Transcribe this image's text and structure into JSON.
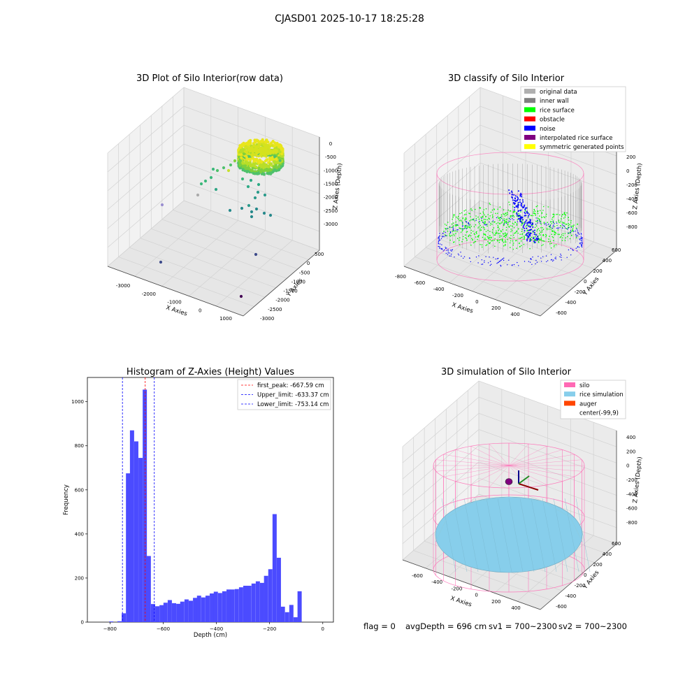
{
  "figure": {
    "suptitle": "CJASD01 2025-10-17 18:25:28",
    "status_line": {
      "flag": "flag = 0",
      "avg": "avgDepth = 696 cm",
      "sv1": "sv1 = 700~2300",
      "sv2": "sv2 = 700~2300"
    }
  },
  "colors": {
    "original": "#b0b0b0",
    "inner_wall": "#808080",
    "rice_surface": "#00ff00",
    "obstacle": "#ff0000",
    "noise": "#0000ff",
    "interpolated": "#800080",
    "symmetric": "#ffff00",
    "silo": "#ff69b4",
    "rice_sim": "#87ceeb",
    "auger": "#ff4500",
    "hist_bar": "#4b4bff",
    "peak_line": "#ff0000",
    "limit_line": "#0000ff"
  },
  "chart_data": [
    {
      "type": "scatter",
      "projection": "3d",
      "title": "3D Plot of Silo Interior(row data)",
      "xlabel": "X Axies",
      "ylabel": "Y Axies",
      "zlabel": "Z Axies (Depth)",
      "x_ticks": [
        "-3000",
        "-2000",
        "-1000",
        "0",
        "1000"
      ],
      "y_ticks": [
        "500",
        "0",
        "-500",
        "-1000",
        "-1500",
        "-2000",
        "-2500",
        "-3000"
      ],
      "z_ticks": [
        "0",
        "-500",
        "-1000",
        "-1500",
        "-2000",
        "-2500",
        "-3000"
      ],
      "xlim": [
        -3600,
        1300
      ],
      "ylim": [
        -3100,
        800
      ],
      "zlim": [
        -3300,
        100
      ]
    },
    {
      "type": "scatter",
      "projection": "3d",
      "title": "3D classify of Silo Interior",
      "xlabel": "X Axies",
      "ylabel": "Y Axies",
      "zlabel": "Z Axies (Depth)",
      "x_ticks": [
        "-800",
        "-600",
        "-400",
        "-200",
        "0",
        "200",
        "400"
      ],
      "y_ticks": [
        "600",
        "400",
        "200",
        "0",
        "-200",
        "-400",
        "-600"
      ],
      "z_ticks": [
        "200",
        "0",
        "-200",
        "-400",
        "-600",
        "-800"
      ],
      "legend": [
        "original data",
        "inner wall",
        "rice surface",
        "obstacle",
        "noise",
        "interpolated rice surface",
        "symmetric generated points"
      ],
      "legend_loc": "upper right"
    },
    {
      "type": "bar",
      "title": "Histogram of Z-Axies (Height) Values",
      "xlabel": "Depth (cm)",
      "ylabel": "Frequency",
      "xlim": [
        -885,
        40
      ],
      "ylim": [
        0,
        1110
      ],
      "x_ticks": [
        -800,
        -600,
        -400,
        -200,
        0
      ],
      "y_ticks": [
        0,
        200,
        400,
        600,
        800,
        1000
      ],
      "bin_width": 15.75,
      "bins": [
        {
          "x": -803,
          "v": 3
        },
        {
          "x": -788,
          "v": 0
        },
        {
          "x": -772,
          "v": 4
        },
        {
          "x": -756,
          "v": 40
        },
        {
          "x": -740,
          "v": 675
        },
        {
          "x": -725,
          "v": 870
        },
        {
          "x": -709,
          "v": 820
        },
        {
          "x": -693,
          "v": 745
        },
        {
          "x": -677,
          "v": 1055
        },
        {
          "x": -662,
          "v": 300
        },
        {
          "x": -646,
          "v": 82
        },
        {
          "x": -630,
          "v": 72
        },
        {
          "x": -614,
          "v": 77
        },
        {
          "x": -599,
          "v": 88
        },
        {
          "x": -583,
          "v": 100
        },
        {
          "x": -567,
          "v": 86
        },
        {
          "x": -551,
          "v": 83
        },
        {
          "x": -536,
          "v": 93
        },
        {
          "x": -520,
          "v": 103
        },
        {
          "x": -504,
          "v": 97
        },
        {
          "x": -488,
          "v": 110
        },
        {
          "x": -473,
          "v": 120
        },
        {
          "x": -457,
          "v": 112
        },
        {
          "x": -441,
          "v": 120
        },
        {
          "x": -425,
          "v": 130
        },
        {
          "x": -410,
          "v": 138
        },
        {
          "x": -394,
          "v": 132
        },
        {
          "x": -378,
          "v": 140
        },
        {
          "x": -362,
          "v": 148
        },
        {
          "x": -347,
          "v": 148
        },
        {
          "x": -331,
          "v": 150
        },
        {
          "x": -315,
          "v": 158
        },
        {
          "x": -299,
          "v": 165
        },
        {
          "x": -284,
          "v": 165
        },
        {
          "x": -268,
          "v": 175
        },
        {
          "x": -252,
          "v": 185
        },
        {
          "x": -236,
          "v": 178
        },
        {
          "x": -221,
          "v": 210
        },
        {
          "x": -205,
          "v": 240
        },
        {
          "x": -189,
          "v": 490
        },
        {
          "x": -173,
          "v": 292
        },
        {
          "x": -158,
          "v": 70
        },
        {
          "x": -142,
          "v": 45
        },
        {
          "x": -126,
          "v": 78
        },
        {
          "x": -110,
          "v": 22
        },
        {
          "x": -95,
          "v": 140
        }
      ],
      "vlines": [
        {
          "label": "first_peak: -667.59 cm",
          "x": -667.59,
          "color": "#ff0000"
        },
        {
          "label": "Upper_limit: -633.37 cm",
          "x": -633.37,
          "color": "#0000ff"
        },
        {
          "label": "Lower_limit: -753.14 cm",
          "x": -753.14,
          "color": "#0000ff"
        }
      ]
    },
    {
      "type": "surface",
      "projection": "3d",
      "title": "3D simulation of Silo Interior",
      "xlabel": "X Axies",
      "ylabel": "Y Axies",
      "zlabel": "Z Axies (Depth)",
      "x_ticks": [
        "-600",
        "-400",
        "-200",
        "0",
        "200",
        "400"
      ],
      "y_ticks": [
        "600",
        "400",
        "200",
        "0",
        "-200",
        "-400",
        "-600"
      ],
      "z_ticks": [
        "400",
        "200",
        "0",
        "-200",
        "-400",
        "-600",
        "-800"
      ],
      "legend": [
        "silo",
        "rice simulation",
        "auger",
        "center(-99,9)"
      ],
      "legend_loc": "upper right"
    }
  ]
}
